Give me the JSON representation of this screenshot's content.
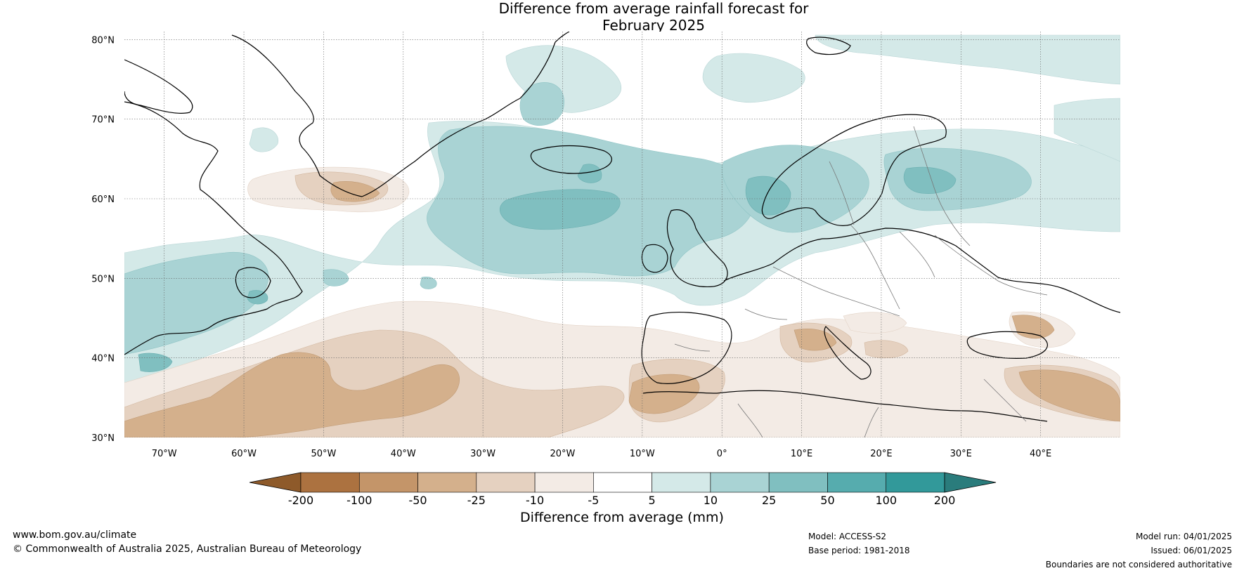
{
  "title": {
    "line1": "Difference from average rainfall forecast for",
    "line2": "February 2025"
  },
  "map": {
    "lat_labels": [
      "80°N",
      "70°N",
      "60°N",
      "50°N",
      "40°N",
      "30°N"
    ],
    "lon_labels": [
      "70°W",
      "60°W",
      "50°W",
      "40°W",
      "30°W",
      "20°W",
      "10°W",
      "0°",
      "10°E",
      "20°E",
      "30°E",
      "40°E"
    ],
    "extent": {
      "lon": [
        -75,
        50
      ],
      "lat": [
        30,
        81
      ]
    },
    "grid": true
  },
  "colorbar": {
    "labels": [
      "-200",
      "-100",
      "-50",
      "-25",
      "-10",
      "-5",
      "5",
      "10",
      "25",
      "50",
      "100",
      "200"
    ],
    "colors": [
      "#ac7240",
      "#c49569",
      "#d4b08c",
      "#e5d1c0",
      "#f3ebe5",
      "#ffffff",
      "#d4e9e8",
      "#a9d3d4",
      "#80bfc0",
      "#56acae",
      "#32999a"
    ],
    "extend_low_color": "#8e5a2a",
    "extend_high_color": "#2a7c7c",
    "caption": "Difference from average (mm)"
  },
  "footer": {
    "website": "www.bom.gov.au/climate",
    "copyright": "© Commonwealth of Australia 2025, Australian Bureau of Meteorology",
    "model": "Model: ACCESS-S2",
    "base_period": "Base period: 1981-2018",
    "model_run": "Model run: 04/01/2025",
    "issued": "Issued: 06/01/2025",
    "disclaimer": "Boundaries are not considered authoritative"
  }
}
